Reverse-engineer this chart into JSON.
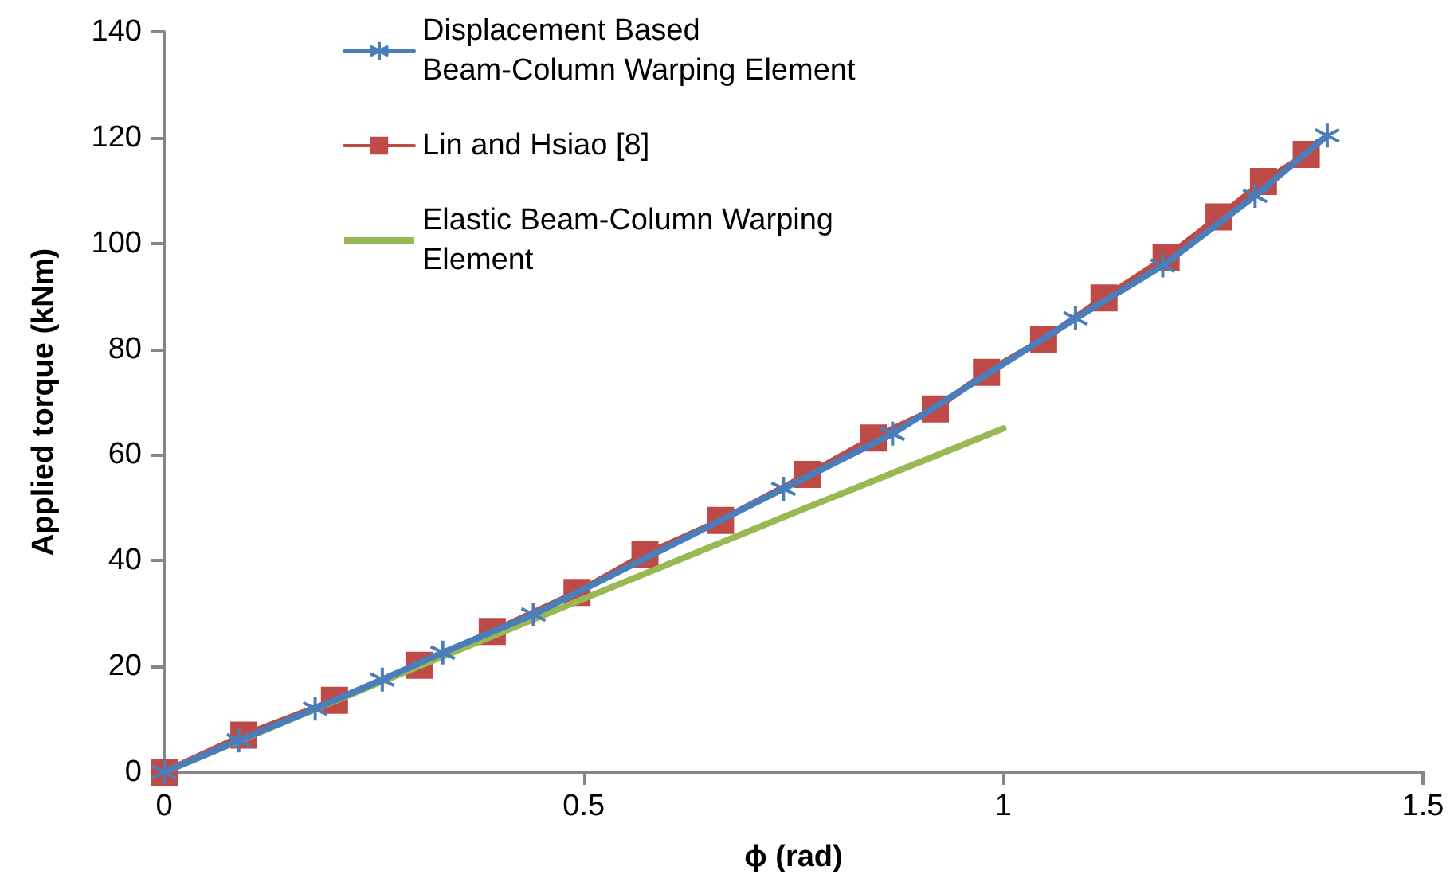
{
  "chart_data": {
    "type": "line",
    "xlabel": "ϕ (rad)",
    "ylabel": "Applied torque (kNm)",
    "xlim": [
      0,
      1.5
    ],
    "xticks": [
      0,
      0.5,
      1,
      1.5
    ],
    "ylim": [
      0,
      140
    ],
    "yticks": [
      0,
      20,
      40,
      60,
      80,
      100,
      120,
      140
    ],
    "grid": false,
    "legend": "top left",
    "series": [
      {
        "name": "Displacement Based Beam-Column Warping Element",
        "color": "#4a7ebb",
        "marker": "cross",
        "x": [
          0,
          0.089,
          0.18,
          0.26,
          0.332,
          0.44,
          0.738,
          0.868,
          1.086,
          1.19,
          1.3,
          1.386
        ],
        "values": [
          0,
          6,
          12,
          17.5,
          22.6,
          29.8,
          53.6,
          64,
          85.8,
          95.8,
          109,
          120.4
        ]
      },
      {
        "name": "Lin and Hsiao [8]",
        "color": "#be4b48",
        "marker": "square",
        "x": [
          0,
          0.095,
          0.203,
          0.304,
          0.391,
          0.492,
          0.573,
          0.663,
          0.767,
          0.845,
          0.919,
          0.98,
          1.048,
          1.12,
          1.194,
          1.257,
          1.31,
          1.361
        ],
        "values": [
          0,
          7,
          13.6,
          20.2,
          26.6,
          34,
          41.2,
          47.6,
          56.3,
          63.2,
          68.7,
          75.6,
          81.9,
          89.7,
          97.3,
          105,
          111.7,
          116.8
        ]
      },
      {
        "name": "Elastic Beam-Column Warping Element",
        "color": "#98b954",
        "marker": "none",
        "x": [
          0,
          0.25,
          0.5,
          0.75,
          1.0
        ],
        "values": [
          0,
          16.5,
          32.8,
          49,
          65
        ]
      }
    ]
  }
}
